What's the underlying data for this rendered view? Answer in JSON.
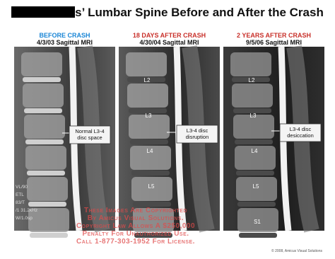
{
  "title": "s’ Lumbar Spine Before and After the Crash",
  "panels": [
    {
      "heading": "BEFORE CRASH",
      "date": "4/3/03 Sagittal MRI",
      "annotation": [
        "Normal L3-4",
        "disc space"
      ],
      "levels": [],
      "scan_text": [
        "VL/90",
        "ETL",
        "83/T",
        "/1 31.2kHz",
        "W/1.0sp"
      ]
    },
    {
      "heading": "18 DAYS AFTER CRASH",
      "date": "4/30/04 Sagittal MRI",
      "annotation": [
        "L3-4 disc",
        "disruption"
      ],
      "levels": [
        "L2",
        "L3",
        "L4",
        "L5"
      ],
      "scan_text": []
    },
    {
      "heading": "2 YEARS AFTER CRASH",
      "date": "9/5/06 Sagittal MRI",
      "annotation": [
        "L3-4 disc",
        "desiccation"
      ],
      "levels": [
        "L2",
        "L3",
        "L4",
        "L5",
        "S1"
      ],
      "scan_text": []
    }
  ],
  "watermark": [
    "These Images Are Copyrighted",
    "By Amicus Visual Solutions.",
    "Copyright Law Allows A $250,000",
    "Penalty For Unauthorized Use.",
    "Call 1-877-303-1952 For License."
  ],
  "copyright": "© 2008, Amicus Visual Solutions"
}
